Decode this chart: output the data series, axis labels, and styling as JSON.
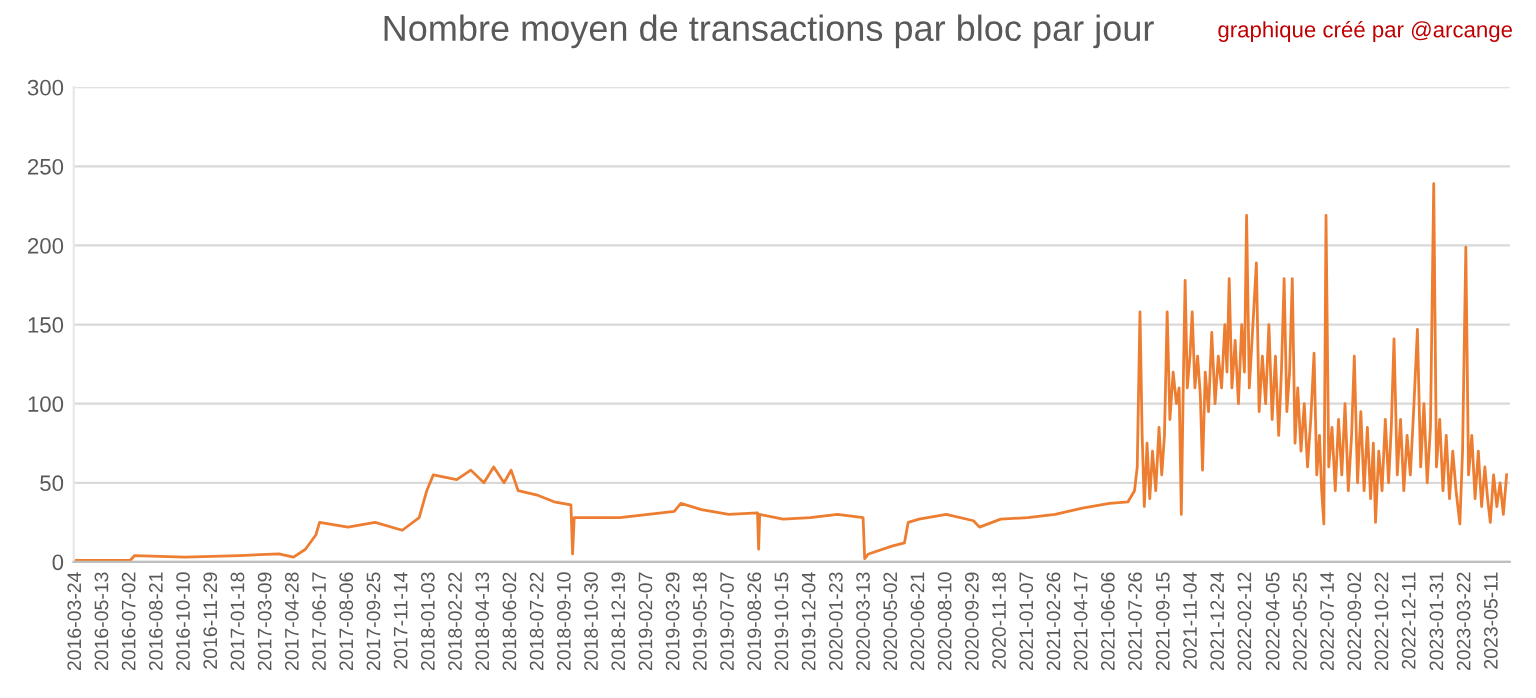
{
  "chart_data": {
    "type": "line",
    "title": "Nombre moyen de transactions par bloc par jour",
    "annotations": [
      "graphique créé par @arcange"
    ],
    "xlim": [
      "2016-03-20",
      "2023-06-12"
    ],
    "xticks": [
      "2016-03-24",
      "2016-05-13",
      "2016-07-02",
      "2016-08-21",
      "2016-10-10",
      "2016-11-29",
      "2017-01-18",
      "2017-03-09",
      "2017-04-28",
      "2017-06-17",
      "2017-08-06",
      "2017-09-25",
      "2017-11-14",
      "2018-01-03",
      "2018-02-22",
      "2018-04-13",
      "2018-06-02",
      "2018-07-22",
      "2018-09-10",
      "2018-10-30",
      "2018-12-19",
      "2019-02-07",
      "2019-03-29",
      "2019-05-18",
      "2019-07-07",
      "2019-08-26",
      "2019-10-15",
      "2019-12-04",
      "2020-01-23",
      "2020-03-13",
      "2020-05-02",
      "2020-06-21",
      "2020-08-10",
      "2020-09-29",
      "2020-11-18",
      "2021-01-07",
      "2021-02-26",
      "2021-04-17",
      "2021-06-06",
      "2021-07-26",
      "2021-09-15",
      "2021-11-04",
      "2021-12-24",
      "2022-02-12",
      "2022-04-05",
      "2022-05-25",
      "2022-07-14",
      "2022-09-02",
      "2022-10-22",
      "2022-12-11",
      "2023-01-31",
      "2023-03-22",
      "2023-05-11"
    ],
    "ylim": [
      0,
      300
    ],
    "yticks": [
      0,
      50,
      100,
      150,
      200,
      250,
      300
    ],
    "grid": "y",
    "legend": false,
    "series": [
      {
        "color": "#ed7d31",
        "x": [
          "2016-03-24",
          "2016-07-02",
          "2016-07-10",
          "2016-10-10",
          "2017-01-18",
          "2017-04-01",
          "2017-04-28",
          "2017-05-20",
          "2017-06-08",
          "2017-06-15",
          "2017-08-06",
          "2017-09-25",
          "2017-11-14",
          "2017-12-15",
          "2017-12-29",
          "2018-01-10",
          "2018-02-22",
          "2018-03-20",
          "2018-04-13",
          "2018-05-01",
          "2018-05-20",
          "2018-06-02",
          "2018-06-15",
          "2018-07-22",
          "2018-08-20",
          "2018-09-20",
          "2018-09-23",
          "2018-09-26",
          "2018-12-19",
          "2019-03-29",
          "2019-04-10",
          "2019-05-18",
          "2019-07-07",
          "2019-08-29",
          "2019-08-31",
          "2019-09-02",
          "2019-10-15",
          "2019-12-04",
          "2020-01-23",
          "2020-03-10",
          "2020-03-13",
          "2020-03-20",
          "2020-05-02",
          "2020-05-25",
          "2020-06-01",
          "2020-06-21",
          "2020-08-10",
          "2020-09-29",
          "2020-10-10",
          "2020-11-18",
          "2021-01-07",
          "2021-02-26",
          "2021-04-17",
          "2021-06-06",
          "2021-07-10",
          "2021-07-22",
          "2021-07-27",
          "2021-08-01",
          "2021-08-05",
          "2021-08-09",
          "2021-08-14",
          "2021-08-19",
          "2021-08-24",
          "2021-08-30",
          "2021-09-05",
          "2021-09-10",
          "2021-09-15",
          "2021-09-20",
          "2021-09-25",
          "2021-10-01",
          "2021-10-07",
          "2021-10-12",
          "2021-10-16",
          "2021-10-20",
          "2021-10-23",
          "2021-10-27",
          "2021-11-01",
          "2021-11-05",
          "2021-11-10",
          "2021-11-15",
          "2021-11-20",
          "2021-11-24",
          "2021-11-29",
          "2021-12-05",
          "2021-12-11",
          "2021-12-17",
          "2021-12-23",
          "2021-12-29",
          "2022-01-04",
          "2022-01-08",
          "2022-01-12",
          "2022-01-17",
          "2022-01-23",
          "2022-01-29",
          "2022-02-04",
          "2022-02-09",
          "2022-02-13",
          "2022-02-18",
          "2022-02-23",
          "2022-03-03",
          "2022-03-08",
          "2022-03-14",
          "2022-03-20",
          "2022-03-26",
          "2022-04-01",
          "2022-04-07",
          "2022-04-13",
          "2022-04-18",
          "2022-04-23",
          "2022-04-28",
          "2022-05-03",
          "2022-05-08",
          "2022-05-13",
          "2022-05-18",
          "2022-05-24",
          "2022-05-30",
          "2022-06-05",
          "2022-06-11",
          "2022-06-17",
          "2022-06-22",
          "2022-06-27",
          "2022-07-01",
          "2022-07-05",
          "2022-07-09",
          "2022-07-14",
          "2022-07-20",
          "2022-07-26",
          "2022-08-01",
          "2022-08-07",
          "2022-08-13",
          "2022-08-19",
          "2022-08-25",
          "2022-08-30",
          "2022-09-05",
          "2022-09-11",
          "2022-09-17",
          "2022-09-23",
          "2022-09-29",
          "2022-10-04",
          "2022-10-08",
          "2022-10-14",
          "2022-10-20",
          "2022-10-26",
          "2022-11-01",
          "2022-11-06",
          "2022-11-11",
          "2022-11-17",
          "2022-11-23",
          "2022-11-29",
          "2022-12-05",
          "2022-12-11",
          "2022-12-17",
          "2022-12-24",
          "2022-12-30",
          "2023-01-05",
          "2023-01-11",
          "2023-01-17",
          "2023-01-23",
          "2023-01-28",
          "2023-02-03",
          "2023-02-09",
          "2023-02-15",
          "2023-02-21",
          "2023-02-27",
          "2023-03-05",
          "2023-03-12",
          "2023-03-17",
          "2023-03-23",
          "2023-03-28",
          "2023-04-03",
          "2023-04-09",
          "2023-04-15",
          "2023-04-21",
          "2023-04-27",
          "2023-05-02",
          "2023-05-07",
          "2023-05-13",
          "2023-05-19",
          "2023-05-25",
          "2023-05-31",
          "2023-06-06"
        ],
        "values": [
          1,
          1,
          4,
          3,
          4,
          5,
          3,
          8,
          17,
          25,
          22,
          25,
          20,
          28,
          45,
          55,
          52,
          58,
          50,
          60,
          50,
          58,
          45,
          42,
          38,
          36,
          5,
          28,
          28,
          32,
          37,
          33,
          30,
          31,
          8,
          30,
          27,
          28,
          30,
          28,
          2,
          5,
          10,
          12,
          25,
          27,
          30,
          26,
          22,
          27,
          28,
          30,
          34,
          37,
          38,
          45,
          60,
          158,
          80,
          35,
          75,
          40,
          70,
          45,
          85,
          55,
          80,
          158,
          90,
          120,
          100,
          110,
          30,
          120,
          178,
          110,
          130,
          158,
          110,
          130,
          105,
          58,
          120,
          95,
          145,
          100,
          130,
          110,
          150,
          120,
          179,
          110,
          140,
          100,
          150,
          120,
          219,
          110,
          140,
          189,
          95,
          130,
          100,
          150,
          90,
          130,
          80,
          120,
          179,
          95,
          120,
          179,
          75,
          110,
          70,
          100,
          60,
          90,
          132,
          55,
          80,
          45,
          24,
          219,
          60,
          85,
          45,
          90,
          55,
          100,
          45,
          80,
          130,
          50,
          95,
          45,
          85,
          40,
          75,
          25,
          70,
          45,
          90,
          50,
          85,
          141,
          55,
          90,
          45,
          80,
          55,
          95,
          147,
          60,
          100,
          50,
          85,
          239,
          60,
          90,
          45,
          80,
          40,
          70,
          45,
          24,
          70,
          199,
          55,
          80,
          40,
          70,
          35,
          60,
          40,
          25,
          55,
          35,
          50,
          30,
          55
        ]
      }
    ]
  }
}
